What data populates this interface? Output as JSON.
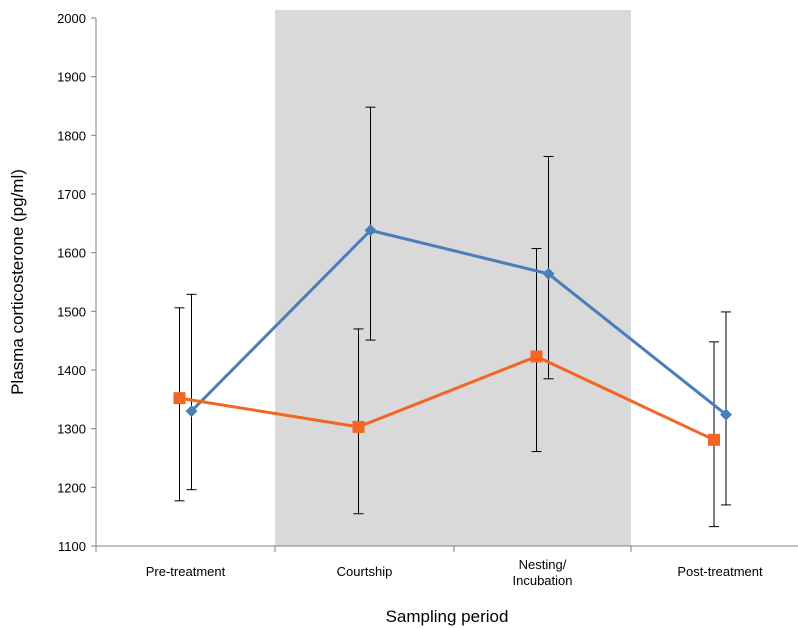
{
  "chart_data": {
    "type": "line",
    "title": "",
    "xlabel": "Sampling period",
    "ylabel": "Plasma corticosterone (pg/ml)",
    "ylim": [
      1100,
      2000
    ],
    "yticks": [
      1100,
      1200,
      1300,
      1400,
      1500,
      1600,
      1700,
      1800,
      1900,
      2000
    ],
    "categories": [
      "Pre-treatment",
      "Courtship",
      "Nesting/\nIncubation",
      "Post-treatment"
    ],
    "shaded_categories": [
      "Courtship",
      "Nesting/\nIncubation"
    ],
    "shade_color": "#d9d9d9",
    "grid": false,
    "legend": "none",
    "series": [
      {
        "color": "#4a7ebb",
        "marker": "diamond",
        "values": [
          1330,
          1638,
          1564,
          1324
        ],
        "error_low": [
          1196,
          1451,
          1385,
          1170
        ],
        "error_high": [
          1529,
          1848,
          1764,
          1499
        ]
      },
      {
        "color": "#f26522",
        "marker": "square",
        "values": [
          1352,
          1303,
          1423,
          1281
        ],
        "error_low": [
          1177,
          1155,
          1261,
          1133
        ],
        "error_high": [
          1506,
          1470,
          1607,
          1448
        ]
      }
    ]
  }
}
